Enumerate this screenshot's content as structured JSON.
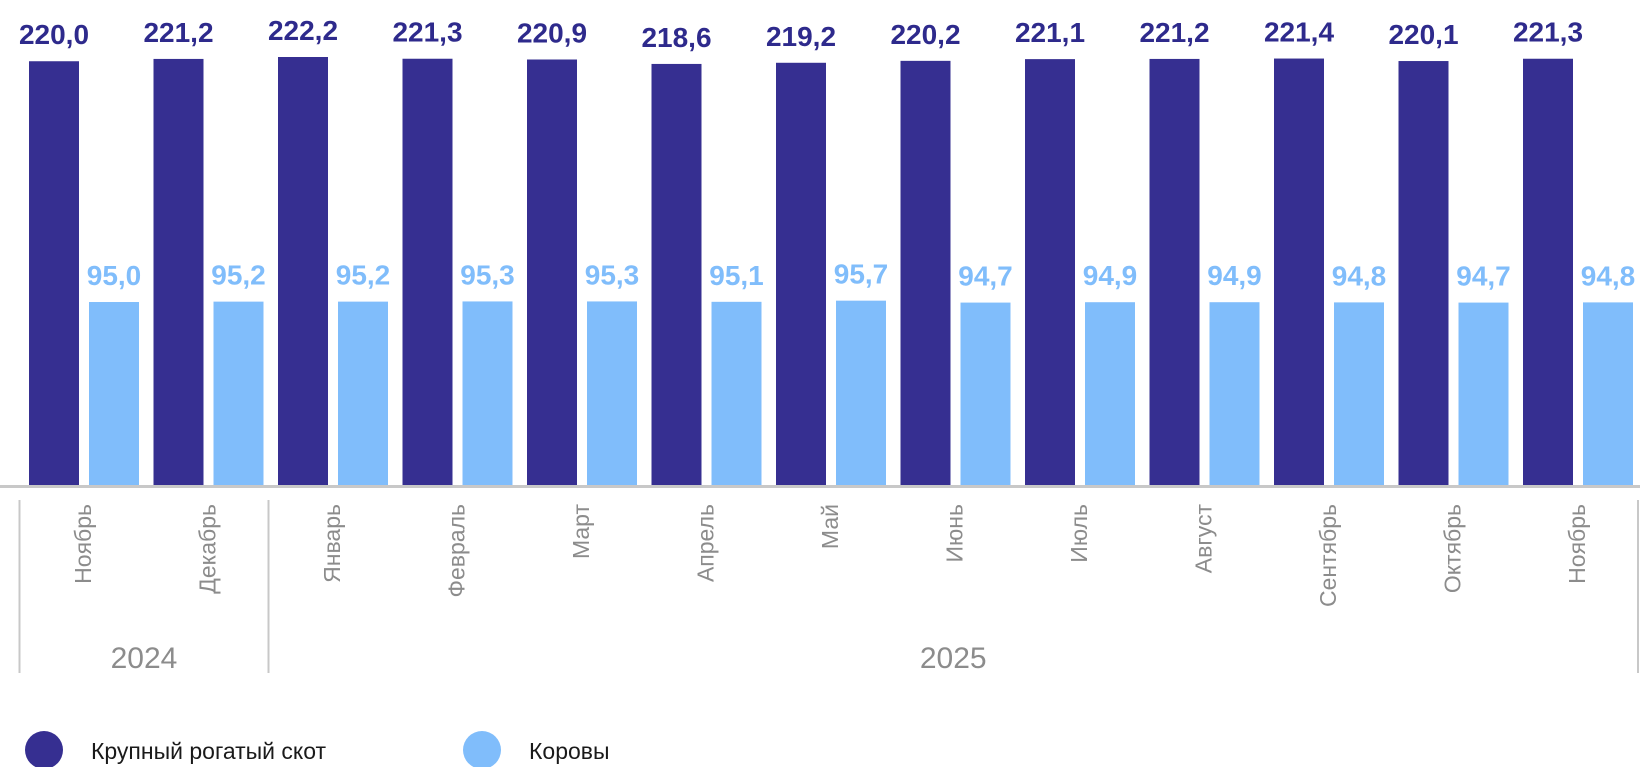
{
  "chart_data": {
    "type": "bar",
    "categories": [
      "Ноябрь",
      "Декабрь",
      "Январь",
      "Февраль",
      "Март",
      "Апрель",
      "Май",
      "Июнь",
      "Июль",
      "Август",
      "Сентябрь",
      "Октябрь",
      "Ноябрь"
    ],
    "year_groups": [
      {
        "label": "2024",
        "count": 2
      },
      {
        "label": "2025",
        "count": 11
      }
    ],
    "series": [
      {
        "name": "Крупный рогатый скот",
        "color": "#362f91",
        "label_color": "#2e2a8c",
        "values": [
          220.0,
          221.2,
          222.2,
          221.3,
          220.9,
          218.6,
          219.2,
          220.2,
          221.1,
          221.2,
          221.4,
          220.1,
          221.3
        ],
        "value_labels": [
          "220,0",
          "221,2",
          "222,2",
          "221,3",
          "220,9",
          "218,6",
          "219,2",
          "220,2",
          "221,1",
          "221,2",
          "221,4",
          "220,1",
          "221,3"
        ]
      },
      {
        "name": "Коровы",
        "color": "#80bdfb",
        "label_color": "#80bdfb",
        "values": [
          95.0,
          95.2,
          95.2,
          95.3,
          95.3,
          95.1,
          95.7,
          94.7,
          94.9,
          94.9,
          94.8,
          94.7,
          94.8
        ],
        "value_labels": [
          "95,0",
          "95,2",
          "95,2",
          "95,3",
          "95,3",
          "95,1",
          "95,7",
          "94,7",
          "94,9",
          "94,9",
          "94,8",
          "94,7",
          "94,8"
        ]
      }
    ],
    "ylim": [
      0,
      222.2
    ],
    "grid": false,
    "legend_position": "bottom-left"
  }
}
